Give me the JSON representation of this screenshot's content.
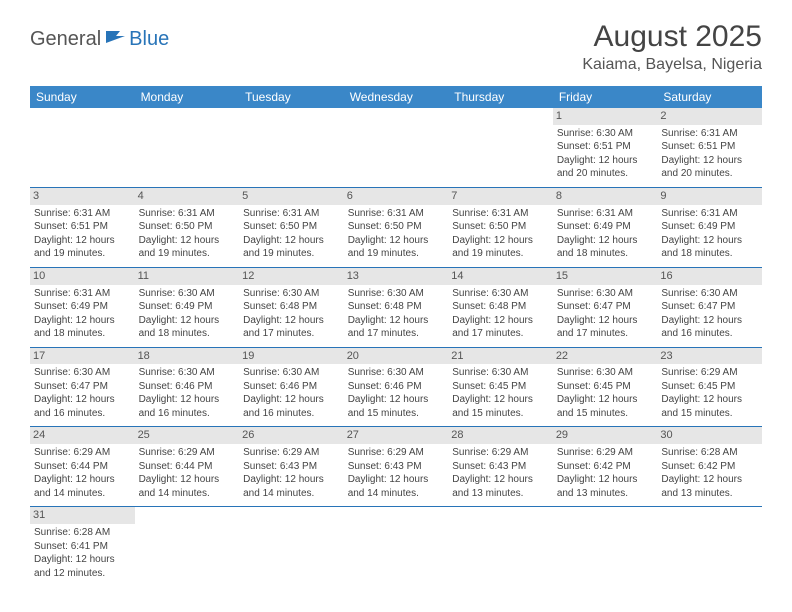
{
  "logo": {
    "part1": "General",
    "part2": "Blue"
  },
  "title": "August 2025",
  "location": "Kaiama, Bayelsa, Nigeria",
  "colors": {
    "header_bg": "#3a87c8",
    "header_text": "#ffffff",
    "daynum_bg": "#e6e6e6",
    "row_border": "#2874b8",
    "body_text": "#444444",
    "logo_gray": "#555555",
    "logo_blue": "#2874b8"
  },
  "weekdays": [
    "Sunday",
    "Monday",
    "Tuesday",
    "Wednesday",
    "Thursday",
    "Friday",
    "Saturday"
  ],
  "weeks": [
    [
      null,
      null,
      null,
      null,
      null,
      {
        "n": "1",
        "sr": "Sunrise: 6:30 AM",
        "ss": "Sunset: 6:51 PM",
        "dl1": "Daylight: 12 hours",
        "dl2": "and 20 minutes."
      },
      {
        "n": "2",
        "sr": "Sunrise: 6:31 AM",
        "ss": "Sunset: 6:51 PM",
        "dl1": "Daylight: 12 hours",
        "dl2": "and 20 minutes."
      }
    ],
    [
      {
        "n": "3",
        "sr": "Sunrise: 6:31 AM",
        "ss": "Sunset: 6:51 PM",
        "dl1": "Daylight: 12 hours",
        "dl2": "and 19 minutes."
      },
      {
        "n": "4",
        "sr": "Sunrise: 6:31 AM",
        "ss": "Sunset: 6:50 PM",
        "dl1": "Daylight: 12 hours",
        "dl2": "and 19 minutes."
      },
      {
        "n": "5",
        "sr": "Sunrise: 6:31 AM",
        "ss": "Sunset: 6:50 PM",
        "dl1": "Daylight: 12 hours",
        "dl2": "and 19 minutes."
      },
      {
        "n": "6",
        "sr": "Sunrise: 6:31 AM",
        "ss": "Sunset: 6:50 PM",
        "dl1": "Daylight: 12 hours",
        "dl2": "and 19 minutes."
      },
      {
        "n": "7",
        "sr": "Sunrise: 6:31 AM",
        "ss": "Sunset: 6:50 PM",
        "dl1": "Daylight: 12 hours",
        "dl2": "and 19 minutes."
      },
      {
        "n": "8",
        "sr": "Sunrise: 6:31 AM",
        "ss": "Sunset: 6:49 PM",
        "dl1": "Daylight: 12 hours",
        "dl2": "and 18 minutes."
      },
      {
        "n": "9",
        "sr": "Sunrise: 6:31 AM",
        "ss": "Sunset: 6:49 PM",
        "dl1": "Daylight: 12 hours",
        "dl2": "and 18 minutes."
      }
    ],
    [
      {
        "n": "10",
        "sr": "Sunrise: 6:31 AM",
        "ss": "Sunset: 6:49 PM",
        "dl1": "Daylight: 12 hours",
        "dl2": "and 18 minutes."
      },
      {
        "n": "11",
        "sr": "Sunrise: 6:30 AM",
        "ss": "Sunset: 6:49 PM",
        "dl1": "Daylight: 12 hours",
        "dl2": "and 18 minutes."
      },
      {
        "n": "12",
        "sr": "Sunrise: 6:30 AM",
        "ss": "Sunset: 6:48 PM",
        "dl1": "Daylight: 12 hours",
        "dl2": "and 17 minutes."
      },
      {
        "n": "13",
        "sr": "Sunrise: 6:30 AM",
        "ss": "Sunset: 6:48 PM",
        "dl1": "Daylight: 12 hours",
        "dl2": "and 17 minutes."
      },
      {
        "n": "14",
        "sr": "Sunrise: 6:30 AM",
        "ss": "Sunset: 6:48 PM",
        "dl1": "Daylight: 12 hours",
        "dl2": "and 17 minutes."
      },
      {
        "n": "15",
        "sr": "Sunrise: 6:30 AM",
        "ss": "Sunset: 6:47 PM",
        "dl1": "Daylight: 12 hours",
        "dl2": "and 17 minutes."
      },
      {
        "n": "16",
        "sr": "Sunrise: 6:30 AM",
        "ss": "Sunset: 6:47 PM",
        "dl1": "Daylight: 12 hours",
        "dl2": "and 16 minutes."
      }
    ],
    [
      {
        "n": "17",
        "sr": "Sunrise: 6:30 AM",
        "ss": "Sunset: 6:47 PM",
        "dl1": "Daylight: 12 hours",
        "dl2": "and 16 minutes."
      },
      {
        "n": "18",
        "sr": "Sunrise: 6:30 AM",
        "ss": "Sunset: 6:46 PM",
        "dl1": "Daylight: 12 hours",
        "dl2": "and 16 minutes."
      },
      {
        "n": "19",
        "sr": "Sunrise: 6:30 AM",
        "ss": "Sunset: 6:46 PM",
        "dl1": "Daylight: 12 hours",
        "dl2": "and 16 minutes."
      },
      {
        "n": "20",
        "sr": "Sunrise: 6:30 AM",
        "ss": "Sunset: 6:46 PM",
        "dl1": "Daylight: 12 hours",
        "dl2": "and 15 minutes."
      },
      {
        "n": "21",
        "sr": "Sunrise: 6:30 AM",
        "ss": "Sunset: 6:45 PM",
        "dl1": "Daylight: 12 hours",
        "dl2": "and 15 minutes."
      },
      {
        "n": "22",
        "sr": "Sunrise: 6:30 AM",
        "ss": "Sunset: 6:45 PM",
        "dl1": "Daylight: 12 hours",
        "dl2": "and 15 minutes."
      },
      {
        "n": "23",
        "sr": "Sunrise: 6:29 AM",
        "ss": "Sunset: 6:45 PM",
        "dl1": "Daylight: 12 hours",
        "dl2": "and 15 minutes."
      }
    ],
    [
      {
        "n": "24",
        "sr": "Sunrise: 6:29 AM",
        "ss": "Sunset: 6:44 PM",
        "dl1": "Daylight: 12 hours",
        "dl2": "and 14 minutes."
      },
      {
        "n": "25",
        "sr": "Sunrise: 6:29 AM",
        "ss": "Sunset: 6:44 PM",
        "dl1": "Daylight: 12 hours",
        "dl2": "and 14 minutes."
      },
      {
        "n": "26",
        "sr": "Sunrise: 6:29 AM",
        "ss": "Sunset: 6:43 PM",
        "dl1": "Daylight: 12 hours",
        "dl2": "and 14 minutes."
      },
      {
        "n": "27",
        "sr": "Sunrise: 6:29 AM",
        "ss": "Sunset: 6:43 PM",
        "dl1": "Daylight: 12 hours",
        "dl2": "and 14 minutes."
      },
      {
        "n": "28",
        "sr": "Sunrise: 6:29 AM",
        "ss": "Sunset: 6:43 PM",
        "dl1": "Daylight: 12 hours",
        "dl2": "and 13 minutes."
      },
      {
        "n": "29",
        "sr": "Sunrise: 6:29 AM",
        "ss": "Sunset: 6:42 PM",
        "dl1": "Daylight: 12 hours",
        "dl2": "and 13 minutes."
      },
      {
        "n": "30",
        "sr": "Sunrise: 6:28 AM",
        "ss": "Sunset: 6:42 PM",
        "dl1": "Daylight: 12 hours",
        "dl2": "and 13 minutes."
      }
    ],
    [
      {
        "n": "31",
        "sr": "Sunrise: 6:28 AM",
        "ss": "Sunset: 6:41 PM",
        "dl1": "Daylight: 12 hours",
        "dl2": "and 12 minutes."
      },
      null,
      null,
      null,
      null,
      null,
      null
    ]
  ]
}
